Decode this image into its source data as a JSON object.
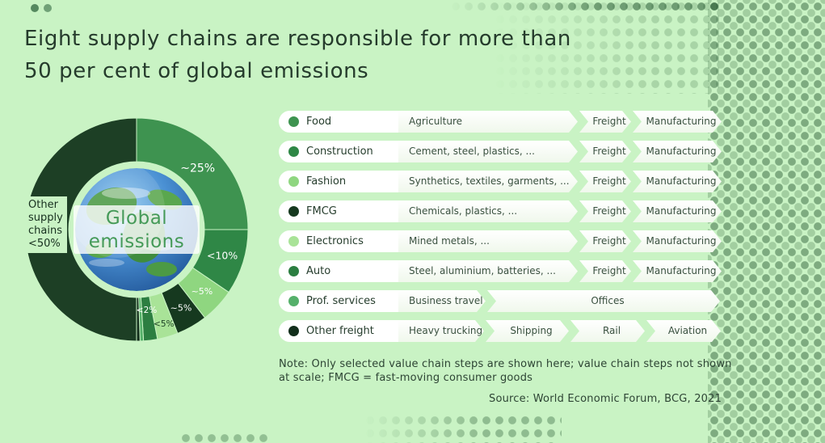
{
  "page": {
    "bg_color": "#c9f3c4",
    "dot_color": "#17502a",
    "title_line1": "Eight supply chains are responsible for more than",
    "title_line2": "50 per cent of global emissions",
    "note_line1": "Note: Only selected value chain steps are shown here; value chain steps not shown",
    "note_line2": "at scale; FMCG = fast-moving consumer goods",
    "source": "Source: World Economic Forum, BCG, 2021"
  },
  "chart_data": {
    "type": "pie",
    "title": "Global emissions",
    "center_label_line1": "Global",
    "center_label_line2": "emissions",
    "other_label_lines": [
      "Other",
      "supply",
      "chains",
      "<50%"
    ],
    "slices": [
      {
        "name": "Food",
        "value": 25,
        "label": "~25%",
        "color": "#3e9350",
        "label_color": "#ffffff",
        "label_size": 14,
        "label_r": 107
      },
      {
        "name": "Construction",
        "value": 9.5,
        "label": "<10%",
        "color": "#2f8746",
        "label_color": "#ffffff",
        "label_size": 12.5,
        "label_r": 111
      },
      {
        "name": "Fashion",
        "value": 5,
        "label": "~5%",
        "color": "#8fd680",
        "label_color": "#ffffff",
        "label_size": 11,
        "label_r": 111
      },
      {
        "name": "FMCG",
        "value": 4.5,
        "label": "~5%",
        "color": "#16391f",
        "label_color": "#ffffff",
        "label_size": 11,
        "label_r": 111
      },
      {
        "name": "Electronics",
        "value": 3,
        "label": "<5%",
        "color": "#a9e398",
        "label_color": "#1e4426",
        "label_size": 10.5,
        "label_r": 121
      },
      {
        "name": "Auto",
        "value": 2,
        "label": "<2%",
        "color": "#2c7e41",
        "label_color": "#ffffff",
        "label_size": 10.5,
        "label_r": 100
      },
      {
        "name": "Prof. services",
        "value": 0.5,
        "label": "",
        "color": "#55b06a",
        "label_color": "",
        "label_size": 0,
        "label_r": 0
      },
      {
        "name": "Other freight",
        "value": 0.5,
        "label": "",
        "color": "#122e1b",
        "label_color": "",
        "label_size": 0,
        "label_r": 0
      },
      {
        "name": "Other supply chains",
        "value": 50,
        "label": "<50%",
        "color": "#1d3f25",
        "label_color": "",
        "label_size": 0,
        "label_r": 0
      }
    ]
  },
  "legend": {
    "rows": [
      {
        "name": "Food",
        "dot": "#3e9350",
        "steps": [
          "Agriculture",
          "Freight",
          "Manufacturing"
        ]
      },
      {
        "name": "Construction",
        "dot": "#2f8746",
        "steps": [
          "Cement, steel, plastics, ...",
          "Freight",
          "Manufacturing"
        ]
      },
      {
        "name": "Fashion",
        "dot": "#8fd680",
        "steps": [
          "Synthetics, textiles, garments, ...",
          "Freight",
          "Manufacturing"
        ]
      },
      {
        "name": "FMCG",
        "dot": "#16391f",
        "steps": [
          "Chemicals, plastics, ...",
          "Freight",
          "Manufacturing"
        ]
      },
      {
        "name": "Electronics",
        "dot": "#a9e398",
        "steps": [
          "Mined metals, ...",
          "Freight",
          "Manufacturing"
        ]
      },
      {
        "name": "Auto",
        "dot": "#2c7e41",
        "steps": [
          "Steel, aluminium, batteries, ...",
          "Freight",
          "Manufacturing"
        ]
      },
      {
        "name": "Prof. services",
        "dot": "#55b06a",
        "steps": [
          "Business travel",
          "Offices"
        ]
      },
      {
        "name": "Other freight",
        "dot": "#122e1b",
        "steps": [
          "Heavy trucking",
          "Shipping",
          "Rail",
          "Aviation"
        ]
      }
    ]
  }
}
